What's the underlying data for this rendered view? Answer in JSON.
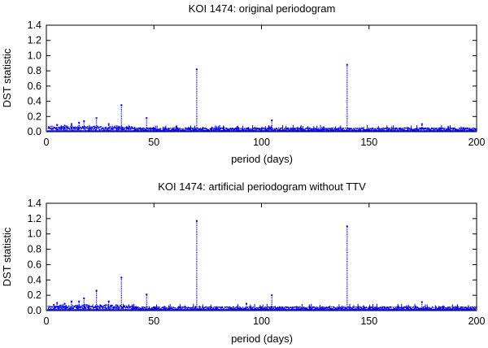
{
  "chart_data": [
    {
      "type": "scatter",
      "title": "KOI 1474: original periodogram",
      "xlabel": "period (days)",
      "ylabel": "DST statistic",
      "xlim": [
        0,
        200
      ],
      "ylim": [
        0,
        1.4
      ],
      "xticks": [
        "0",
        "50",
        "100",
        "150",
        "200"
      ],
      "yticks": [
        "0.0",
        "0.2",
        "0.4",
        "0.6",
        "0.8",
        "1.0",
        "1.2",
        "1.4"
      ],
      "series_color": "#0000ff",
      "baseline": {
        "mean": 0.03,
        "spread": 0.02
      },
      "peaks": [
        {
          "x": 5.0,
          "y": 0.09
        },
        {
          "x": 8.5,
          "y": 0.08
        },
        {
          "x": 11.7,
          "y": 0.1
        },
        {
          "x": 15.2,
          "y": 0.12
        },
        {
          "x": 17.5,
          "y": 0.14
        },
        {
          "x": 23.3,
          "y": 0.18
        },
        {
          "x": 29.0,
          "y": 0.1
        },
        {
          "x": 34.9,
          "y": 0.35
        },
        {
          "x": 46.6,
          "y": 0.18
        },
        {
          "x": 69.9,
          "y": 0.82
        },
        {
          "x": 104.8,
          "y": 0.15
        },
        {
          "x": 139.8,
          "y": 0.88
        },
        {
          "x": 174.6,
          "y": 0.1
        }
      ]
    },
    {
      "type": "scatter",
      "title": "KOI 1474: artificial periodogram without TTV",
      "xlabel": "period (days)",
      "ylabel": "DST statistic",
      "xlim": [
        0,
        200
      ],
      "ylim": [
        0,
        1.4
      ],
      "xticks": [
        "0",
        "50",
        "100",
        "150",
        "200"
      ],
      "yticks": [
        "0.0",
        "0.2",
        "0.4",
        "0.6",
        "0.8",
        "1.0",
        "1.2",
        "1.4"
      ],
      "series_color": "#0000ff",
      "baseline": {
        "mean": 0.03,
        "spread": 0.02
      },
      "peaks": [
        {
          "x": 5.0,
          "y": 0.1
        },
        {
          "x": 8.5,
          "y": 0.09
        },
        {
          "x": 11.7,
          "y": 0.12
        },
        {
          "x": 15.2,
          "y": 0.12
        },
        {
          "x": 17.5,
          "y": 0.16
        },
        {
          "x": 23.3,
          "y": 0.26
        },
        {
          "x": 29.0,
          "y": 0.12
        },
        {
          "x": 34.9,
          "y": 0.43
        },
        {
          "x": 46.6,
          "y": 0.21
        },
        {
          "x": 69.9,
          "y": 1.17
        },
        {
          "x": 93.0,
          "y": 0.09
        },
        {
          "x": 104.8,
          "y": 0.2
        },
        {
          "x": 139.8,
          "y": 1.1
        },
        {
          "x": 174.6,
          "y": 0.11
        }
      ]
    }
  ]
}
